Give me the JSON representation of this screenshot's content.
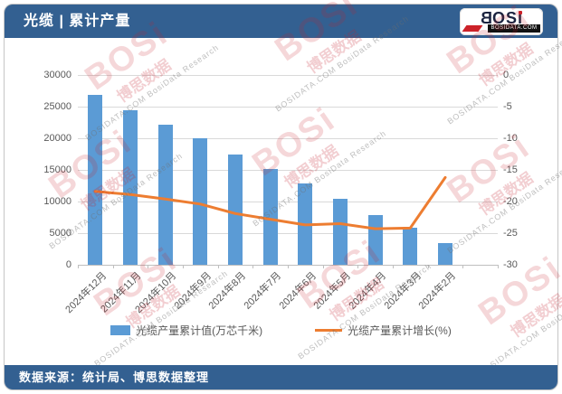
{
  "header": {
    "title": "光缆 | 累计产量",
    "logo": {
      "text_prefix": "B",
      "text_rest": "OS",
      "text_i": "ı",
      "subtext": "BOSIDATA.COM"
    }
  },
  "footer": {
    "source": "数据来源：统计局、博思数据整理"
  },
  "watermark": {
    "brand": "BOSi",
    "brand_cn": "博思数据",
    "sub": "BOSIDATA.COM BosiData Research"
  },
  "colors": {
    "header_bg": "#336091",
    "bar": "#5b9bd5",
    "line": "#ed7d31",
    "axis_text": "#595959",
    "gridline": "#d9d9d9",
    "watermark_red": "#c5202c"
  },
  "chart_data": {
    "type": "bar",
    "subtype": "bar+line combo, dual axis",
    "categories": [
      "2024年12月",
      "2024年11月",
      "2024年10月",
      "2024年9月",
      "2024年8月",
      "2024年7月",
      "2024年6月",
      "2024年5月",
      "2024年4月",
      "2024年3月",
      "2024年2月"
    ],
    "series": [
      {
        "name": "光缆产量累计值(万芯千米)",
        "type": "bar",
        "axis": "left",
        "color": "#5b9bd5",
        "values": [
          26800,
          24500,
          22100,
          20000,
          17400,
          15200,
          12900,
          10500,
          7900,
          5800,
          3500
        ]
      },
      {
        "name": "光缆产量累计增长(%)",
        "type": "line",
        "axis": "right",
        "color": "#ed7d31",
        "values": [
          -18.4,
          -18.9,
          -19.6,
          -20.4,
          -21.9,
          -22.8,
          -23.7,
          -23.5,
          -24.3,
          -24.2,
          -16.2
        ]
      }
    ],
    "left_axis": {
      "min": 0,
      "max": 30000,
      "step": 5000,
      "ticks": [
        "30000",
        "25000",
        "20000",
        "15000",
        "10000",
        "5000",
        "0"
      ]
    },
    "right_axis": {
      "min": -30,
      "max": 0,
      "step": 5,
      "ticks": [
        "0",
        "-5",
        "-10",
        "-15",
        "-20",
        "-25",
        "-30"
      ]
    },
    "grid": true,
    "legend_position": "bottom",
    "x_label_rotation": -45
  }
}
